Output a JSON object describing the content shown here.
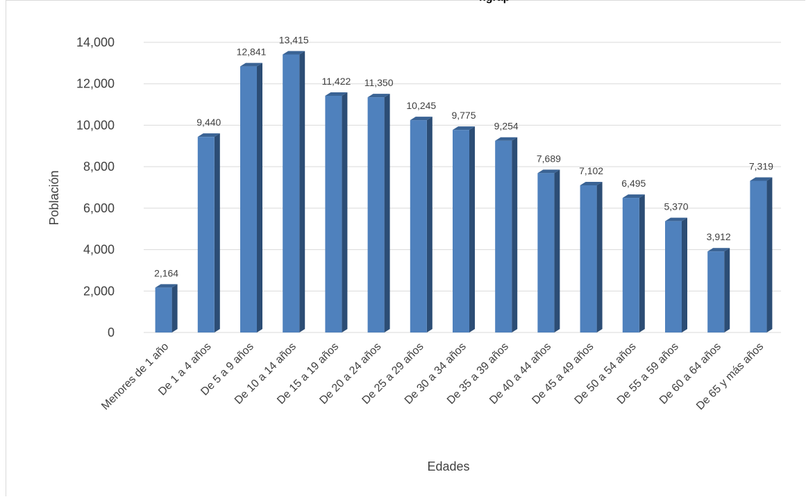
{
  "chart_data": {
    "type": "bar",
    "title": "",
    "xlabel": "Edades",
    "ylabel": "Población",
    "ylim": [
      0,
      14000
    ],
    "yticks": [
      0,
      2000,
      4000,
      6000,
      8000,
      10000,
      12000,
      14000
    ],
    "ytick_labels": [
      "0",
      "2,000",
      "4,000",
      "6,000",
      "8,000",
      "10,000",
      "12,000",
      "14,000"
    ],
    "grid": true,
    "legend": "none",
    "categories": [
      "Menores de 1 año",
      "De 1 a 4 años",
      "De 5 a 9 años",
      "De 10 a 14 años",
      "De 15 a 19 años",
      "De 20 a 24 años",
      "De 25 a 29 años",
      "De 30 a 34 años",
      "De 35 a 39 años",
      "De 40 a 44 años",
      "De 45 a 49 años",
      "De 50 a 54 años",
      "De 55 a 59 años",
      "De 60 a 64 años",
      "De 65 y más años"
    ],
    "values": [
      2164,
      9440,
      12841,
      13415,
      11422,
      11350,
      10245,
      9775,
      9254,
      7689,
      7102,
      6495,
      5370,
      3912,
      7319
    ],
    "value_labels": [
      "2,164",
      "9,440",
      "12,841",
      "13,415",
      "11,422",
      "11,350",
      "10,245",
      "9,775",
      "9,254",
      "7,689",
      "7,102",
      "6,495",
      "5,370",
      "3,912",
      "7,319"
    ],
    "colors": {
      "bar_front": "#4F81BD",
      "bar_side": "#2C4D75",
      "bar_top": "#3A6394",
      "gridline": "#d9d9d9",
      "text": "#404040"
    }
  },
  "header": {
    "title_fragment": "ngrap"
  }
}
